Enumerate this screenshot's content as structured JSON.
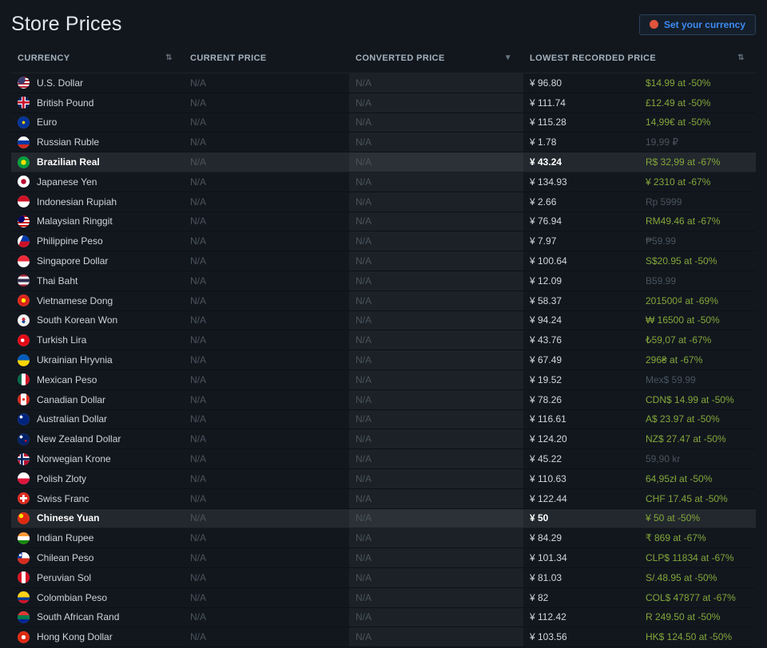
{
  "page": {
    "title": "Store Prices",
    "set_currency_label": "Set your currency"
  },
  "colors": {
    "accent_blue": "#3d8bf4",
    "button_icon_red": "#e0533d",
    "discount_green": "#84a73a"
  },
  "table": {
    "headers": [
      {
        "label": "CURRENCY",
        "sort": "⇅"
      },
      {
        "label": "CURRENT PRICE",
        "sort": ""
      },
      {
        "label": "CONVERTED PRICE",
        "sort": "▼"
      },
      {
        "label": "LOWEST RECORDED PRICE",
        "sort": "⇅"
      }
    ],
    "rows": [
      {
        "flag": "us",
        "currency": "U.S. Dollar",
        "current_price": "N/A",
        "converted_price": "N/A",
        "lowest_converted": "¥ 96.80",
        "lowest_original": "$14.99 at -50%",
        "has_discount": true,
        "highlighted": false
      },
      {
        "flag": "gb",
        "currency": "British Pound",
        "current_price": "N/A",
        "converted_price": "N/A",
        "lowest_converted": "¥ 111.74",
        "lowest_original": "£12.49 at -50%",
        "has_discount": true,
        "highlighted": false
      },
      {
        "flag": "eu",
        "currency": "Euro",
        "current_price": "N/A",
        "converted_price": "N/A",
        "lowest_converted": "¥ 115.28",
        "lowest_original": "14,99€ at -50%",
        "has_discount": true,
        "highlighted": false
      },
      {
        "flag": "ru",
        "currency": "Russian Ruble",
        "current_price": "N/A",
        "converted_price": "N/A",
        "lowest_converted": "¥ 1.78",
        "lowest_original": "19,99 ₽",
        "has_discount": false,
        "highlighted": false
      },
      {
        "flag": "br",
        "currency": "Brazilian Real",
        "current_price": "N/A",
        "converted_price": "N/A",
        "lowest_converted": "¥ 43.24",
        "lowest_original": "R$ 32,99 at -67%",
        "has_discount": true,
        "highlighted": true
      },
      {
        "flag": "jp",
        "currency": "Japanese Yen",
        "current_price": "N/A",
        "converted_price": "N/A",
        "lowest_converted": "¥ 134.93",
        "lowest_original": "¥ 2310 at -67%",
        "has_discount": true,
        "highlighted": false
      },
      {
        "flag": "id",
        "currency": "Indonesian Rupiah",
        "current_price": "N/A",
        "converted_price": "N/A",
        "lowest_converted": "¥ 2.66",
        "lowest_original": "Rp 5999",
        "has_discount": false,
        "highlighted": false
      },
      {
        "flag": "my",
        "currency": "Malaysian Ringgit",
        "current_price": "N/A",
        "converted_price": "N/A",
        "lowest_converted": "¥ 76.94",
        "lowest_original": "RM49.46 at -67%",
        "has_discount": true,
        "highlighted": false
      },
      {
        "flag": "ph",
        "currency": "Philippine Peso",
        "current_price": "N/A",
        "converted_price": "N/A",
        "lowest_converted": "¥ 7.97",
        "lowest_original": "₱59.99",
        "has_discount": false,
        "highlighted": false
      },
      {
        "flag": "sg",
        "currency": "Singapore Dollar",
        "current_price": "N/A",
        "converted_price": "N/A",
        "lowest_converted": "¥ 100.64",
        "lowest_original": "S$20.95 at -50%",
        "has_discount": true,
        "highlighted": false
      },
      {
        "flag": "th",
        "currency": "Thai Baht",
        "current_price": "N/A",
        "converted_price": "N/A",
        "lowest_converted": "¥ 12.09",
        "lowest_original": "B59.99",
        "has_discount": false,
        "highlighted": false
      },
      {
        "flag": "vn",
        "currency": "Vietnamese Dong",
        "current_price": "N/A",
        "converted_price": "N/A",
        "lowest_converted": "¥ 58.37",
        "lowest_original": "201500₫ at -69%",
        "has_discount": true,
        "highlighted": false
      },
      {
        "flag": "kr",
        "currency": "South Korean Won",
        "current_price": "N/A",
        "converted_price": "N/A",
        "lowest_converted": "¥ 94.24",
        "lowest_original": "₩ 16500 at -50%",
        "has_discount": true,
        "highlighted": false
      },
      {
        "flag": "tr",
        "currency": "Turkish Lira",
        "current_price": "N/A",
        "converted_price": "N/A",
        "lowest_converted": "¥ 43.76",
        "lowest_original": "₺59,07 at -67%",
        "has_discount": true,
        "highlighted": false
      },
      {
        "flag": "ua",
        "currency": "Ukrainian Hryvnia",
        "current_price": "N/A",
        "converted_price": "N/A",
        "lowest_converted": "¥ 67.49",
        "lowest_original": "296₴ at -67%",
        "has_discount": true,
        "highlighted": false
      },
      {
        "flag": "mx",
        "currency": "Mexican Peso",
        "current_price": "N/A",
        "converted_price": "N/A",
        "lowest_converted": "¥ 19.52",
        "lowest_original": "Mex$ 59.99",
        "has_discount": false,
        "highlighted": false
      },
      {
        "flag": "ca",
        "currency": "Canadian Dollar",
        "current_price": "N/A",
        "converted_price": "N/A",
        "lowest_converted": "¥ 78.26",
        "lowest_original": "CDN$ 14.99 at -50%",
        "has_discount": true,
        "highlighted": false
      },
      {
        "flag": "au",
        "currency": "Australian Dollar",
        "current_price": "N/A",
        "converted_price": "N/A",
        "lowest_converted": "¥ 116.61",
        "lowest_original": "A$ 23.97 at -50%",
        "has_discount": true,
        "highlighted": false
      },
      {
        "flag": "nz",
        "currency": "New Zealand Dollar",
        "current_price": "N/A",
        "converted_price": "N/A",
        "lowest_converted": "¥ 124.20",
        "lowest_original": "NZ$ 27.47 at -50%",
        "has_discount": true,
        "highlighted": false
      },
      {
        "flag": "no",
        "currency": "Norwegian Krone",
        "current_price": "N/A",
        "converted_price": "N/A",
        "lowest_converted": "¥ 45.22",
        "lowest_original": "59,90 kr",
        "has_discount": false,
        "highlighted": false
      },
      {
        "flag": "pl",
        "currency": "Polish Zloty",
        "current_price": "N/A",
        "converted_price": "N/A",
        "lowest_converted": "¥ 110.63",
        "lowest_original": "64,95zł at -50%",
        "has_discount": true,
        "highlighted": false
      },
      {
        "flag": "ch",
        "currency": "Swiss Franc",
        "current_price": "N/A",
        "converted_price": "N/A",
        "lowest_converted": "¥ 122.44",
        "lowest_original": "CHF 17.45 at -50%",
        "has_discount": true,
        "highlighted": false
      },
      {
        "flag": "cn",
        "currency": "Chinese Yuan",
        "current_price": "N/A",
        "converted_price": "N/A",
        "lowest_converted": "¥ 50",
        "lowest_original": "¥ 50 at -50%",
        "has_discount": true,
        "highlighted": true
      },
      {
        "flag": "in",
        "currency": "Indian Rupee",
        "current_price": "N/A",
        "converted_price": "N/A",
        "lowest_converted": "¥ 84.29",
        "lowest_original": "₹ 869 at -67%",
        "has_discount": true,
        "highlighted": false
      },
      {
        "flag": "cl",
        "currency": "Chilean Peso",
        "current_price": "N/A",
        "converted_price": "N/A",
        "lowest_converted": "¥ 101.34",
        "lowest_original": "CLP$ 11834 at -67%",
        "has_discount": true,
        "highlighted": false
      },
      {
        "flag": "pe",
        "currency": "Peruvian Sol",
        "current_price": "N/A",
        "converted_price": "N/A",
        "lowest_converted": "¥ 81.03",
        "lowest_original": "S/.48.95 at -50%",
        "has_discount": true,
        "highlighted": false
      },
      {
        "flag": "co",
        "currency": "Colombian Peso",
        "current_price": "N/A",
        "converted_price": "N/A",
        "lowest_converted": "¥ 82",
        "lowest_original": "COL$ 47877 at -67%",
        "has_discount": true,
        "highlighted": false
      },
      {
        "flag": "za",
        "currency": "South African Rand",
        "current_price": "N/A",
        "converted_price": "N/A",
        "lowest_converted": "¥ 112.42",
        "lowest_original": "R 249.50 at -50%",
        "has_discount": true,
        "highlighted": false
      },
      {
        "flag": "hk",
        "currency": "Hong Kong Dollar",
        "current_price": "N/A",
        "converted_price": "N/A",
        "lowest_converted": "¥ 103.56",
        "lowest_original": "HK$ 124.50 at -50%",
        "has_discount": true,
        "highlighted": false
      }
    ]
  }
}
